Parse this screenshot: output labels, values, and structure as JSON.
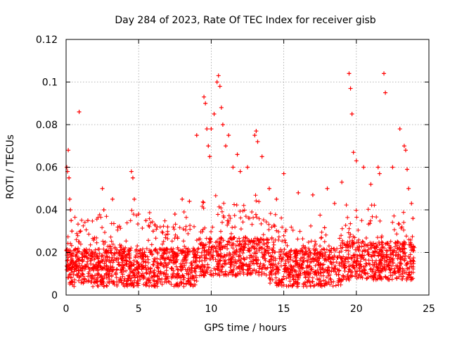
{
  "chart_data": {
    "type": "scatter",
    "title": "Day 284 of 2023, Rate Of TEC Index for receiver gisb",
    "xlabel": "GPS time / hours",
    "ylabel": "ROTI / TECUs",
    "xlim": [
      0,
      25
    ],
    "ylim": [
      0,
      0.12
    ],
    "xticks": [
      "0",
      "5",
      "10",
      "15",
      "20",
      "25"
    ],
    "yticks": [
      "0",
      "0.02",
      "0.04",
      "0.06",
      "0.08",
      "0.1",
      "0.12"
    ],
    "grid": true,
    "marker": "plus",
    "color": "#ff0000",
    "series": [
      {
        "x": [
          0.05,
          0.1,
          0.15,
          0.2,
          0.25,
          0.3,
          0.35,
          0.4,
          0.9,
          1.0,
          1.5,
          2.5,
          2.6,
          3.2,
          4.5,
          4.6,
          4.7,
          5.0,
          5.5,
          6.0,
          7.0,
          7.5,
          8.0,
          8.5,
          9.0,
          9.5,
          9.6,
          9.7,
          9.8,
          9.9,
          10.0,
          10.2,
          10.4,
          10.5,
          10.6,
          10.7,
          10.8,
          11.0,
          11.2,
          11.5,
          11.8,
          12.0,
          12.5,
          13.0,
          13.1,
          13.2,
          13.5,
          14.0,
          14.5,
          15.0,
          16.0,
          17.0,
          18.0,
          18.5,
          19.0,
          19.5,
          19.6,
          19.7,
          19.8,
          20.0,
          20.5,
          21.0,
          21.5,
          21.6,
          21.9,
          22.0,
          22.5,
          23.0,
          23.3,
          23.4,
          23.5,
          23.6,
          23.8,
          23.9
        ],
        "y": [
          0.06,
          0.058,
          0.068,
          0.055,
          0.045,
          0.04,
          0.035,
          0.03,
          0.086,
          0.03,
          0.035,
          0.05,
          0.04,
          0.045,
          0.058,
          0.055,
          0.045,
          0.038,
          0.035,
          0.03,
          0.032,
          0.038,
          0.045,
          0.044,
          0.075,
          0.093,
          0.09,
          0.078,
          0.07,
          0.065,
          0.078,
          0.085,
          0.1,
          0.103,
          0.098,
          0.088,
          0.08,
          0.07,
          0.075,
          0.06,
          0.066,
          0.058,
          0.06,
          0.075,
          0.077,
          0.072,
          0.065,
          0.05,
          0.045,
          0.057,
          0.048,
          0.047,
          0.05,
          0.043,
          0.053,
          0.104,
          0.097,
          0.085,
          0.067,
          0.063,
          0.06,
          0.052,
          0.06,
          0.057,
          0.104,
          0.095,
          0.06,
          0.078,
          0.07,
          0.068,
          0.059,
          0.05,
          0.043,
          0.036
        ]
      }
    ]
  }
}
